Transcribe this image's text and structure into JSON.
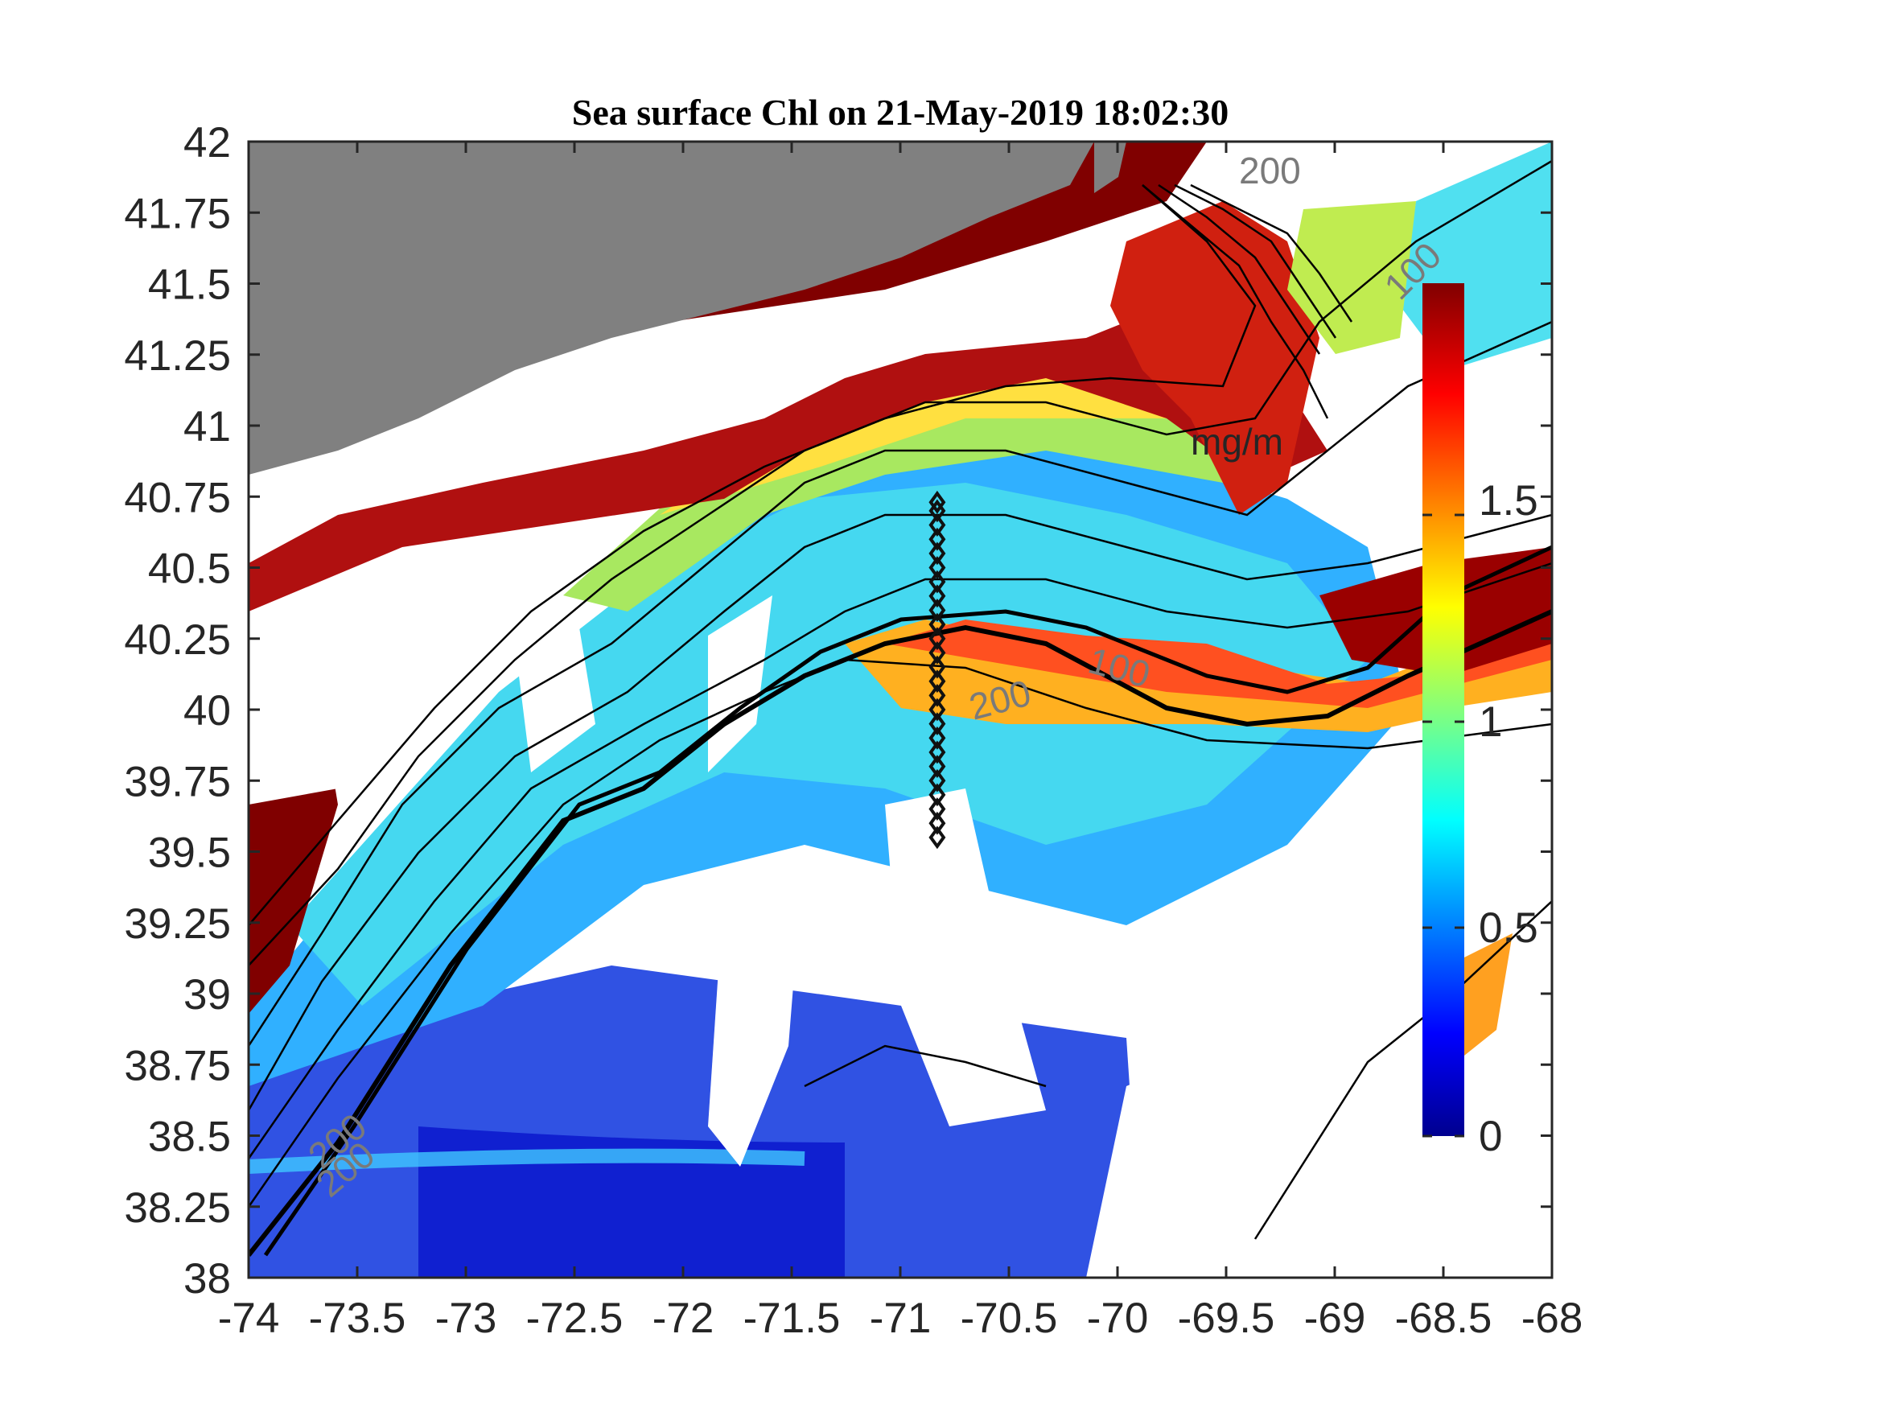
{
  "title": "Sea surface Chl on 21-May-2019 18:02:30",
  "x_ticks": [
    "-74",
    "-73.5",
    "-73",
    "-72.5",
    "-72",
    "-71.5",
    "-71",
    "-70.5",
    "-70",
    "-69.5",
    "-69",
    "-68.5",
    "-68"
  ],
  "y_ticks": [
    "42",
    "41.75",
    "41.5",
    "41.25",
    "41",
    "40.75",
    "40.5",
    "40.25",
    "40",
    "39.75",
    "39.5",
    "39.25",
    "39",
    "38.75",
    "38.5",
    "38.25",
    "38"
  ],
  "colorbar": {
    "ticks": [
      "0",
      "0.5",
      "1",
      "1.5"
    ],
    "unit_label": "mg/m",
    "range": [
      0,
      1.75
    ],
    "colormap": "jet",
    "colors": [
      "#00008f",
      "#0000ff",
      "#00ffff",
      "#ffff00",
      "#ff0000",
      "#800000"
    ]
  },
  "contour_labels": [
    "200",
    "100",
    "100",
    "200",
    "200",
    "200"
  ],
  "colors": {
    "land": "#808080",
    "high_chl": "#800000",
    "no_data": "#ffffff",
    "contours": "#000000"
  },
  "chart_data": {
    "type": "heatmap",
    "title": "Sea surface Chl on 21-May-2019 18:02:30",
    "xlim": [
      -74,
      -68
    ],
    "ylim": [
      38,
      42
    ],
    "x_ticks": [
      -74,
      -73.5,
      -73,
      -72.5,
      -72,
      -71.5,
      -71,
      -70.5,
      -70,
      -69.5,
      -69,
      -68.5,
      -68
    ],
    "y_ticks": [
      42,
      41.75,
      41.5,
      41.25,
      41,
      40.75,
      40.5,
      40.25,
      40,
      39.75,
      39.5,
      39.25,
      39,
      38.75,
      38.5,
      38.25,
      38
    ],
    "colorbar_range": [
      0,
      1.75
    ],
    "contour_levels_labeled": [
      100,
      200
    ],
    "station_line": {
      "lon": -70.83,
      "lats": [
        40.73,
        40.7,
        40.65,
        40.6,
        40.55,
        40.5,
        40.45,
        40.4,
        40.35,
        40.3,
        40.25,
        40.2,
        40.15,
        40.1,
        40.05,
        40.0,
        39.95,
        39.9,
        39.85,
        39.8,
        39.75,
        39.7,
        39.65,
        39.6,
        39.55
      ]
    }
  }
}
